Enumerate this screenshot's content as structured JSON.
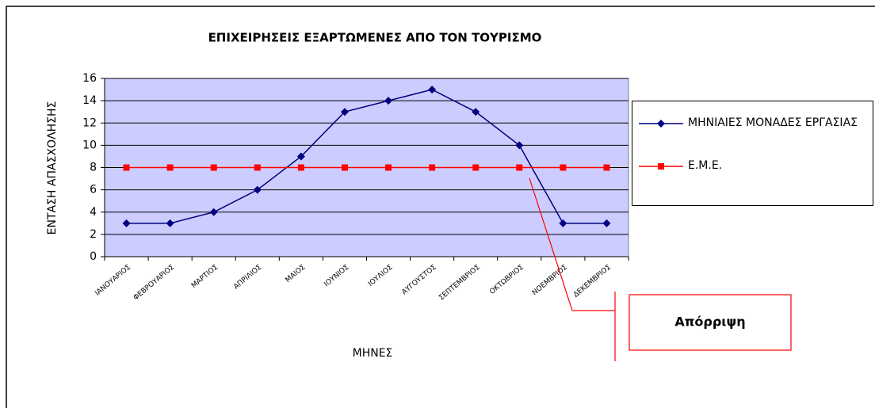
{
  "chart_data": {
    "type": "line",
    "title": "ΕΠΙΧΕΙΡΗΣΕΙΣ ΕΞΑΡΤΩΜΕΝΕΣ ΑΠΟ ΤΟΝ ΤΟΥΡΙΣΜΟ",
    "x_label": "ΜΗΝΕΣ",
    "y_label": "ΕΝΤΑΣΗ ΑΠΑΣΧΟΛΗΣΗΣ",
    "categories": [
      "ΙΑΝΟΥΑΡΙΟΣ",
      "ΦΕΒΡΟΥΑΡΙΟΣ",
      "ΜΑΡΤΙΟΣ",
      "ΑΠΡΙΛΙΟΣ",
      "ΜΑΙΟΣ",
      "ΙΟΥΝΙΟΣ",
      "ΙΟΥΛΙΟΣ",
      "ΑΥΓΟΥΣΤΟΣ",
      "ΣΕΠΤΕΜΒΡΙΟΣ",
      "ΟΚΤΩΒΡΙΟΣ",
      "ΝΟΕΜΒΡΙΟΣ",
      "ΔΕΚΕΜΒΡΙΟΣ"
    ],
    "series": [
      {
        "name": "ΜΗΝΙΑΙΕΣ ΜΟΝΑΔΕΣ ΕΡΓΑΣΙΑΣ",
        "color": "#000080",
        "marker": "diamond",
        "values": [
          3,
          3,
          4,
          6,
          9,
          13,
          14,
          15,
          13,
          10,
          3,
          3
        ]
      },
      {
        "name": "Ε.Μ.Ε.",
        "color": "#ff0000",
        "marker": "square",
        "values": [
          8,
          8,
          8,
          8,
          8,
          8,
          8,
          8,
          8,
          8,
          8,
          8
        ]
      }
    ],
    "ylim": [
      0,
      16
    ],
    "yticks": [
      0,
      2,
      4,
      6,
      8,
      10,
      12,
      14,
      16
    ],
    "grid": true,
    "plot_background": "#ccccff",
    "annotation": "Απόρριψη"
  }
}
